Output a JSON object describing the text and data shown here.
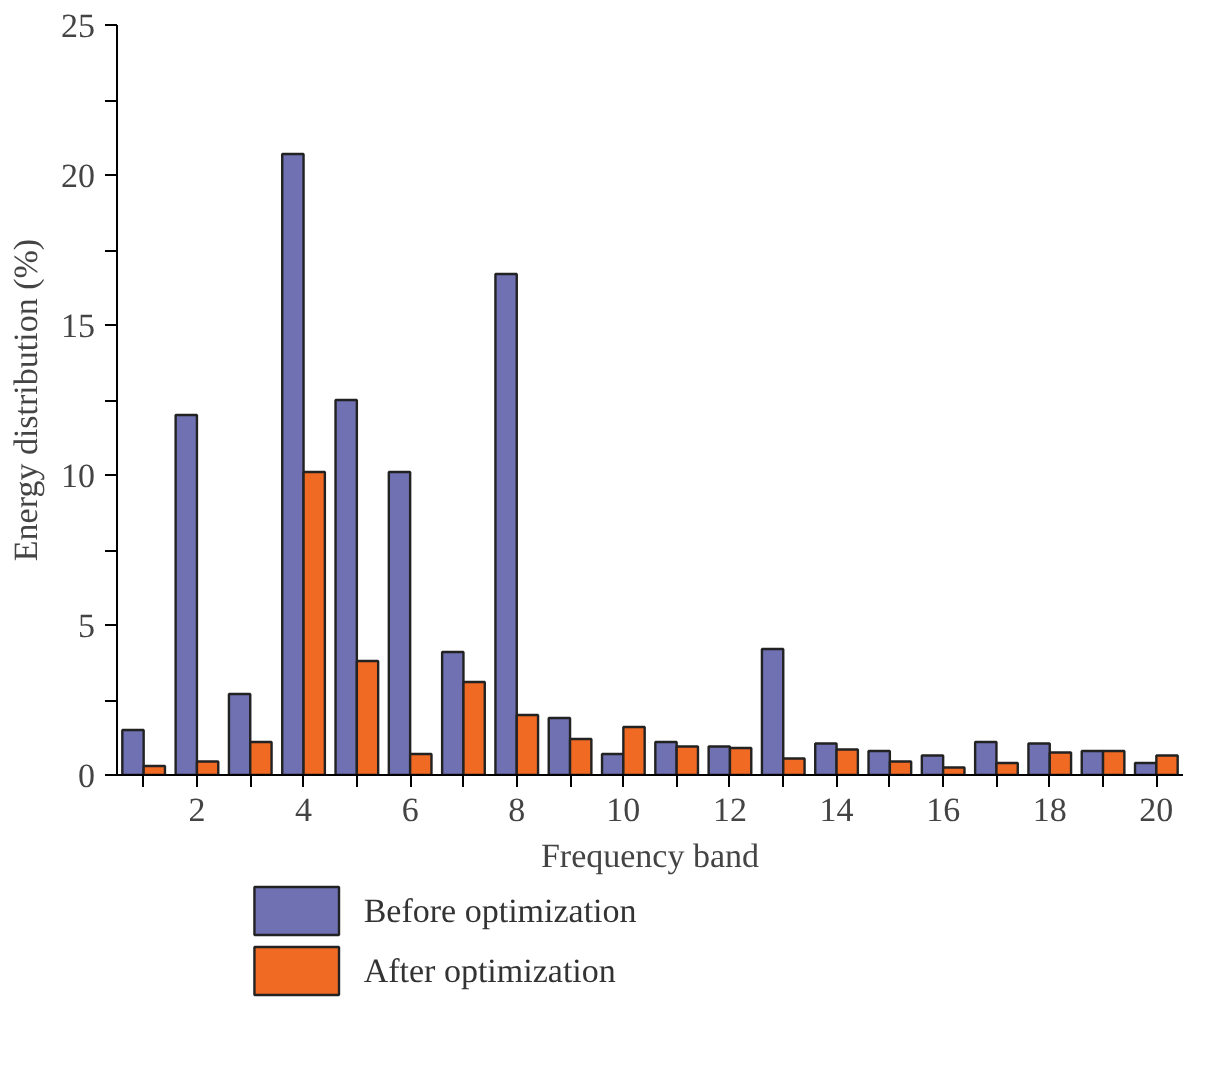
{
  "chart_data": {
    "type": "bar",
    "xlabel": "Frequency band",
    "ylabel": "Energy distribution (%)",
    "x": [
      1,
      2,
      3,
      4,
      5,
      6,
      7,
      8,
      9,
      10,
      11,
      12,
      13,
      14,
      15,
      16,
      17,
      18,
      19,
      20
    ],
    "series": [
      {
        "name": "Before optimization",
        "color": "#6f71b3",
        "values": [
          1.5,
          12.0,
          2.7,
          20.7,
          12.5,
          10.1,
          4.1,
          16.7,
          1.9,
          0.7,
          1.1,
          0.95,
          4.2,
          1.05,
          0.8,
          0.65,
          1.1,
          1.05,
          0.8,
          0.4
        ]
      },
      {
        "name": "After optimization",
        "color": "#f06a24",
        "values": [
          0.3,
          0.45,
          1.1,
          10.1,
          3.8,
          0.7,
          3.1,
          2.0,
          1.2,
          1.6,
          0.95,
          0.9,
          0.55,
          0.85,
          0.45,
          0.25,
          0.4,
          0.75,
          0.8,
          0.65
        ]
      }
    ],
    "xlim": [
      0.5,
      20.5
    ],
    "xticks": [
      {
        "value": 1,
        "label": null
      },
      2,
      {
        "value": 3,
        "label": null
      },
      4,
      {
        "value": 5,
        "label": null
      },
      6,
      {
        "value": 7,
        "label": null
      },
      8,
      {
        "value": 9,
        "label": null
      },
      10,
      {
        "value": 11,
        "label": null
      },
      12,
      {
        "value": 13,
        "label": null
      },
      14,
      {
        "value": 15,
        "label": null
      },
      16,
      {
        "value": 17,
        "label": null
      },
      18,
      {
        "value": 19,
        "label": null
      },
      20
    ],
    "ylim": [
      0,
      25
    ],
    "yticks": [
      0,
      {
        "value": 2.5,
        "label": null
      },
      5,
      {
        "value": 7.5,
        "label": null
      },
      10,
      {
        "value": 12.5,
        "label": null
      },
      15,
      {
        "value": 17.5,
        "label": null
      },
      20,
      {
        "value": 22.5,
        "label": null
      },
      25
    ],
    "grid": false,
    "legend": "bottom"
  }
}
